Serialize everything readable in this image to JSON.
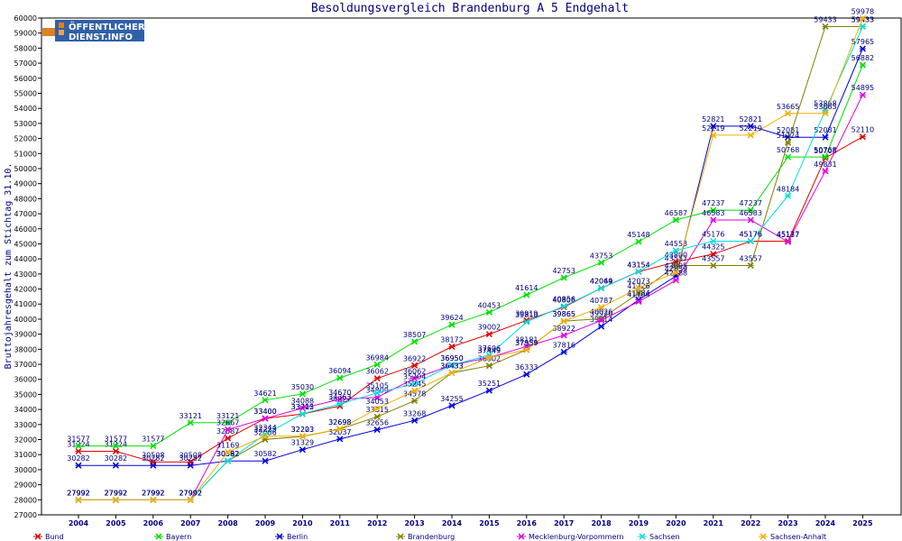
{
  "logo": {
    "line1": "ÖFFENTLICHER",
    "line2": "DIENST.INFO",
    "color_primary": "#3060a8",
    "color_accent": "#e08020"
  },
  "chart_data": {
    "type": "line",
    "title": "Besoldungsvergleich Brandenburg A 5 Endgehalt",
    "xlabel": "",
    "ylabel": "Bruttojahresgehalt zum Stichtag 31.10.",
    "ylim": [
      27000,
      60000
    ],
    "ytick_step": 1000,
    "grid": false,
    "legend_position": "bottom",
    "categories": [
      "2004",
      "2005",
      "2006",
      "2007",
      "2008",
      "2009",
      "2010",
      "2011",
      "2012",
      "2013",
      "2014",
      "2015",
      "2016",
      "2017",
      "2018",
      "2019",
      "2020",
      "2021",
      "2022",
      "2023",
      "2024",
      "2025"
    ],
    "series": [
      {
        "name": "Bund",
        "color": "#e00000",
        "values": [
          31224,
          31224,
          30508,
          30508,
          32087,
          33400,
          33702,
          34227,
          36062,
          36922,
          38172,
          39002,
          39919,
          40806,
          42064,
          43154,
          43800,
          44325,
          45176,
          45177,
          50708,
          52110
        ]
      },
      {
        "name": "Bayern",
        "color": "#00e000",
        "values": [
          31577,
          31577,
          31577,
          33121,
          33121,
          34621,
          35030,
          36094,
          36984,
          38507,
          39624,
          40453,
          41614,
          42753,
          43753,
          45148,
          46587,
          47237,
          47237,
          50768,
          50768,
          56882
        ]
      },
      {
        "name": "Berlin",
        "color": "#0000e0",
        "values": [
          30282,
          30282,
          30282,
          30282,
          30582,
          30582,
          31329,
          32037,
          32656,
          33268,
          34255,
          35251,
          36333,
          37816,
          39514,
          41284,
          42859,
          52821,
          52821,
          52081,
          52081,
          57965
        ]
      },
      {
        "name": "Brandenburg",
        "color": "#808000",
        "values": [
          27992,
          27992,
          27992,
          27992,
          30582,
          32006,
          32203,
          32698,
          33515,
          34578,
          36433,
          36902,
          37959,
          39865,
          40026,
          41726,
          43557,
          43557,
          43557,
          51724,
          59433,
          59433
        ]
      },
      {
        "name": "Mecklenburg-Vorpommern",
        "color": "#e000e0",
        "values": [
          27992,
          27992,
          27992,
          27992,
          32667,
          33400,
          34088,
          34670,
          34809,
          36062,
          36950,
          37449,
          38181,
          38922,
          39920,
          41164,
          42588,
          46583,
          46583,
          45137,
          49831,
          54895
        ]
      },
      {
        "name": "Sachsen",
        "color": "#00e0e0",
        "values": [
          27992,
          27992,
          27992,
          27992,
          30592,
          32344,
          33715,
          34363,
          35105,
          35704,
          36950,
          37606,
          39810,
          40856,
          42049,
          43154,
          44553,
          45176,
          45176,
          48184,
          53868,
          59433
        ]
      },
      {
        "name": "Sachsen-Anhalt",
        "color": "#f0b000",
        "values": [
          27992,
          27992,
          27992,
          27992,
          31169,
          32223,
          32223,
          32698,
          34053,
          35245,
          36433,
          37449,
          37959,
          39865,
          40787,
          42073,
          43095,
          52219,
          52219,
          53665,
          53665,
          59978
        ]
      }
    ]
  }
}
